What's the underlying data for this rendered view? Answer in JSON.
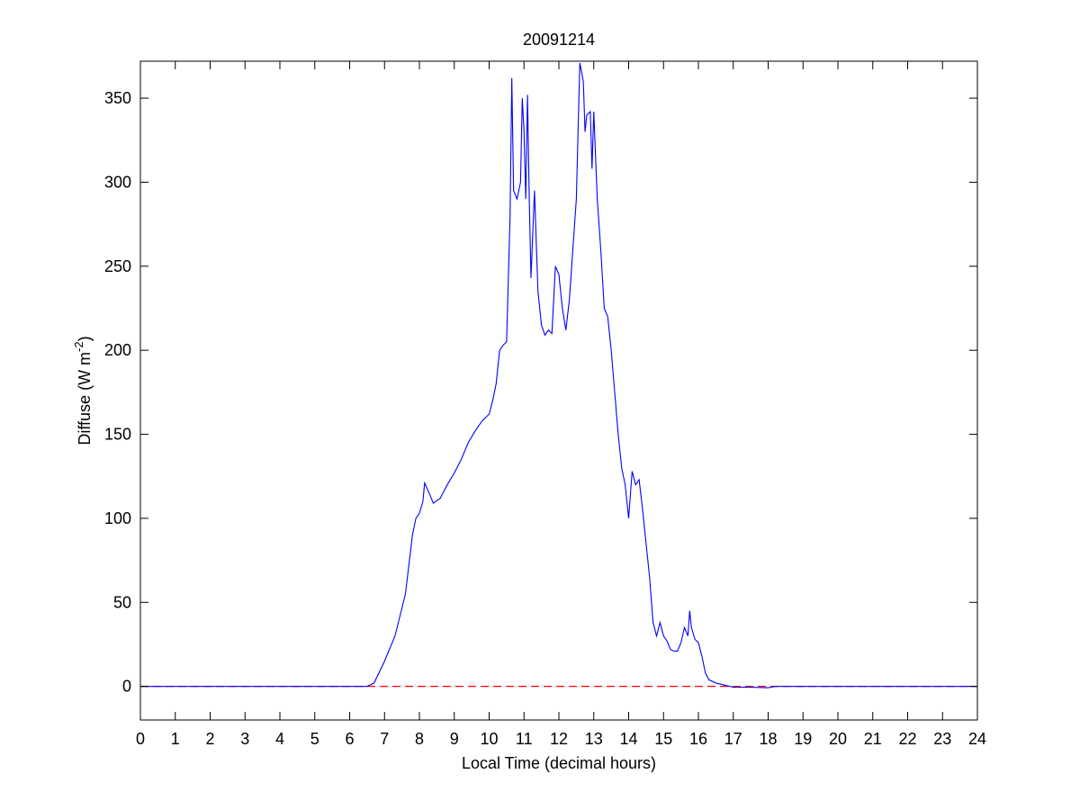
{
  "chart_data": {
    "type": "line",
    "title": "20091214",
    "x_label": "Local Time (decimal hours)",
    "y_label": {
      "text": "Diffuse (W m",
      "superscript": "-2",
      "suffix": ")"
    },
    "xlim": [
      0,
      24
    ],
    "ylim": [
      -20,
      372
    ],
    "xticks": [
      0,
      1,
      2,
      3,
      4,
      5,
      6,
      7,
      8,
      9,
      10,
      11,
      12,
      13,
      14,
      15,
      16,
      17,
      18,
      19,
      20,
      21,
      22,
      23,
      24
    ],
    "yticks": [
      0,
      50,
      100,
      150,
      200,
      250,
      300,
      350
    ],
    "grid": false,
    "reference_line": {
      "value": 0,
      "color": "#ff0000",
      "style": "dashed"
    },
    "series": [
      {
        "color": "#0000ff",
        "x": [
          0,
          6.5,
          6.7,
          7.0,
          7.3,
          7.6,
          7.8,
          7.9,
          8.0,
          8.1,
          8.15,
          8.3,
          8.4,
          8.6,
          8.8,
          9.0,
          9.2,
          9.4,
          9.6,
          9.8,
          10.0,
          10.1,
          10.2,
          10.3,
          10.4,
          10.5,
          10.6,
          10.65,
          10.7,
          10.8,
          10.9,
          10.95,
          11.0,
          11.05,
          11.1,
          11.15,
          11.2,
          11.3,
          11.4,
          11.5,
          11.6,
          11.7,
          11.8,
          11.9,
          12.0,
          12.1,
          12.2,
          12.3,
          12.4,
          12.5,
          12.6,
          12.7,
          12.75,
          12.8,
          12.9,
          12.95,
          13.0,
          13.1,
          13.2,
          13.3,
          13.4,
          13.5,
          13.6,
          13.7,
          13.8,
          13.9,
          14.0,
          14.1,
          14.2,
          14.3,
          14.4,
          14.5,
          14.6,
          14.7,
          14.8,
          14.9,
          15.0,
          15.1,
          15.2,
          15.3,
          15.4,
          15.5,
          15.6,
          15.7,
          15.75,
          15.8,
          15.9,
          16.0,
          16.1,
          16.2,
          16.3,
          16.5,
          16.8,
          17.0,
          17.5,
          18.0,
          18.2,
          24
        ],
        "values": [
          0,
          0,
          2,
          15,
          30,
          55,
          90,
          100,
          103,
          110,
          121,
          114,
          109,
          112,
          120,
          127,
          135,
          145,
          152,
          158,
          162,
          170,
          180,
          200,
          203,
          205,
          280,
          362,
          295,
          290,
          300,
          350,
          330,
          290,
          352,
          290,
          243,
          295,
          235,
          215,
          209,
          212,
          210,
          250,
          245,
          225,
          212,
          230,
          260,
          290,
          371,
          360,
          330,
          340,
          342,
          308,
          342,
          290,
          260,
          225,
          220,
          200,
          175,
          150,
          130,
          120,
          100,
          128,
          120,
          123,
          105,
          85,
          65,
          38,
          30,
          38,
          30,
          27,
          22,
          21,
          21,
          26,
          35,
          30,
          45,
          35,
          28,
          26,
          18,
          8,
          4,
          2,
          0.5,
          -0.5,
          -0.5,
          -0.8,
          0,
          0
        ]
      }
    ]
  }
}
